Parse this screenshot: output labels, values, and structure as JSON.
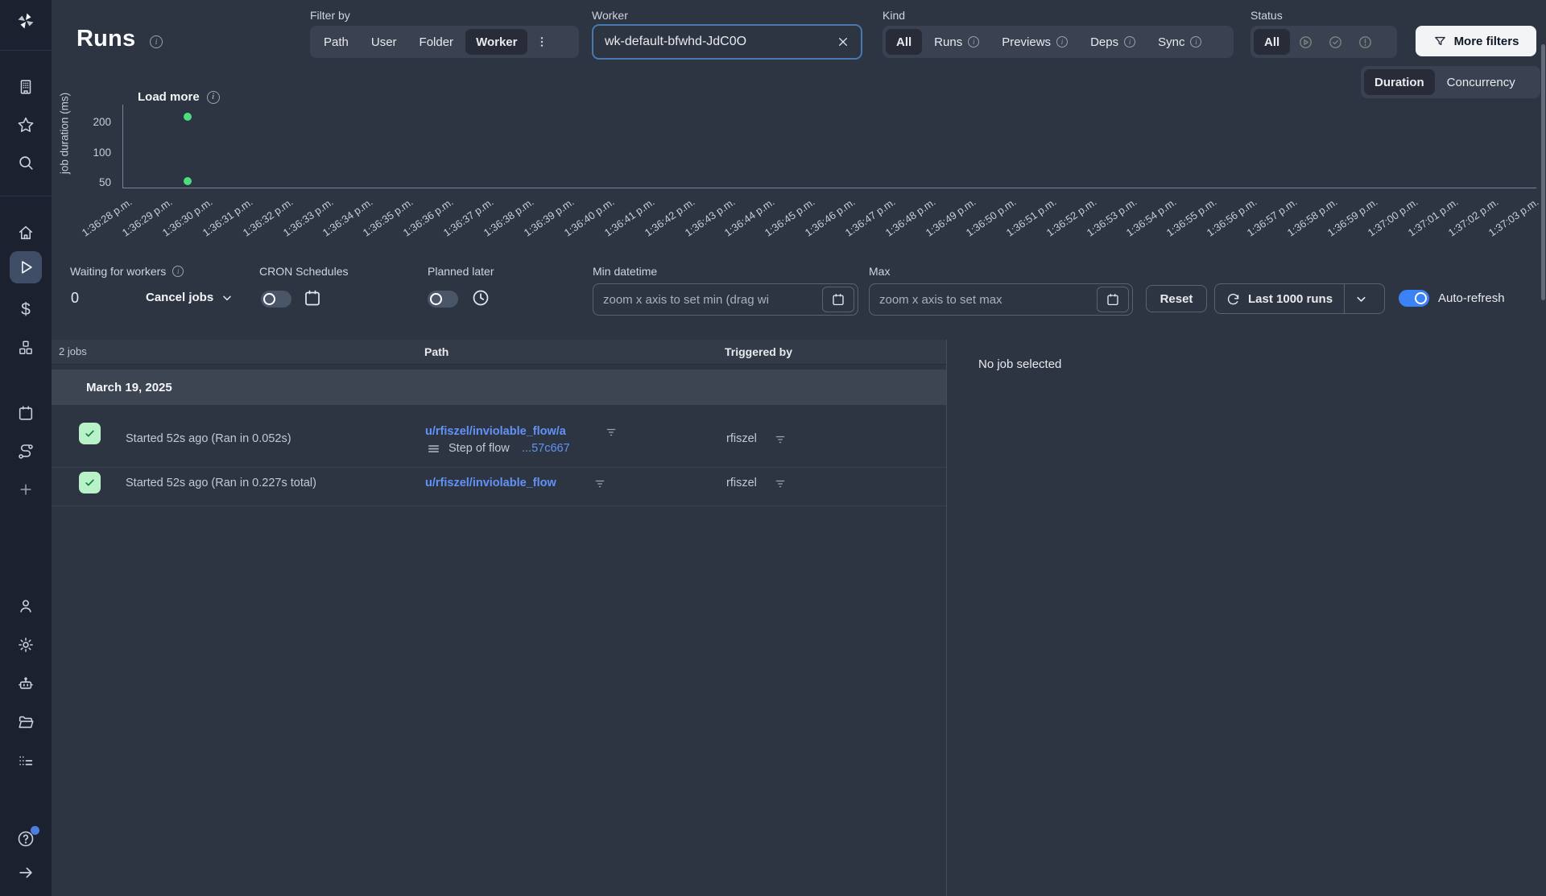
{
  "sidebar": {
    "selected": "runs",
    "icons_top": [
      "windmill-logo",
      "building",
      "star",
      "search"
    ],
    "icons_middle": [
      "home",
      "runs-play",
      "dollar",
      "resources-cubes",
      "calendar-schedules",
      "flows-route",
      "plus"
    ],
    "icons_bottom": [
      "user",
      "settings-gear",
      "robot-workers",
      "folder",
      "audit-list"
    ],
    "icons_footer": [
      "help-circle",
      "collapse-arrow-right"
    ]
  },
  "header": {
    "title": "Runs",
    "filter_by": {
      "label": "Filter by",
      "options": [
        "Path",
        "User",
        "Folder",
        "Worker"
      ],
      "selected": "Worker"
    },
    "worker_filter": {
      "label": "Worker",
      "value": "wk-default-bfwhd-JdC0O"
    },
    "kind": {
      "label": "Kind",
      "selected": "All",
      "options": [
        {
          "label": "All",
          "info": false
        },
        {
          "label": "Runs",
          "info": true
        },
        {
          "label": "Previews",
          "info": true
        },
        {
          "label": "Deps",
          "info": true
        },
        {
          "label": "Sync",
          "info": true
        }
      ]
    },
    "status": {
      "label": "Status",
      "selected": "All",
      "all_label": "All",
      "icon_options": [
        "running-play-circle",
        "success-check-circle",
        "failure-alert-circle"
      ]
    },
    "more_filters_label": "More filters"
  },
  "chart_data": {
    "type": "scatter",
    "title": "",
    "ylabel": "job duration (ms)",
    "yscale": "log",
    "yticks": [
      200,
      100,
      50
    ],
    "x_labels": [
      "1:36:28 p.m.",
      "1:36:29 p.m.",
      "1:36:30 p.m.",
      "1:36:31 p.m.",
      "1:36:32 p.m.",
      "1:36:33 p.m.",
      "1:36:34 p.m.",
      "1:36:35 p.m.",
      "1:36:36 p.m.",
      "1:36:37 p.m.",
      "1:36:38 p.m.",
      "1:36:39 p.m.",
      "1:36:40 p.m.",
      "1:36:41 p.m.",
      "1:36:42 p.m.",
      "1:36:43 p.m.",
      "1:36:44 p.m.",
      "1:36:45 p.m.",
      "1:36:46 p.m.",
      "1:36:47 p.m.",
      "1:36:48 p.m.",
      "1:36:49 p.m.",
      "1:36:50 p.m.",
      "1:36:51 p.m.",
      "1:36:52 p.m.",
      "1:36:53 p.m.",
      "1:36:54 p.m.",
      "1:36:55 p.m.",
      "1:36:56 p.m.",
      "1:36:57 p.m.",
      "1:36:58 p.m.",
      "1:36:59 p.m.",
      "1:37:00 p.m.",
      "1:37:01 p.m.",
      "1:37:02 p.m.",
      "1:37:03 p.m."
    ],
    "points": [
      {
        "x_label": "1:36:30 p.m.",
        "duration_ms": 227
      },
      {
        "x_label": "1:36:30 p.m.",
        "duration_ms": 52
      }
    ],
    "point_color": "#4ade80",
    "load_more_label": "Load more",
    "view_options": [
      "Duration",
      "Concurrency"
    ],
    "view_selected": "Duration",
    "legend": "none",
    "grid": false
  },
  "toolbar": {
    "waiting_for_workers": {
      "label": "Waiting for workers",
      "count": "0"
    },
    "cancel_jobs_label": "Cancel jobs",
    "cron_schedules": {
      "label": "CRON Schedules",
      "enabled": false
    },
    "planned_later": {
      "label": "Planned later",
      "enabled": false
    },
    "min_datetime": {
      "label": "Min datetime",
      "placeholder": "zoom x axis to set min (drag wi"
    },
    "max_datetime": {
      "label": "Max",
      "placeholder": "zoom x axis to set max"
    },
    "reset_label": "Reset",
    "runs_window_label": "Last 1000 runs",
    "auto_refresh": {
      "label": "Auto-refresh",
      "enabled": true
    }
  },
  "jobs_panel": {
    "count_label": "2 jobs",
    "columns": {
      "path": "Path",
      "triggered_by": "Triggered by"
    },
    "date_header": "March 19, 2025",
    "rows": [
      {
        "status": "success",
        "started": "Started 52s ago (Ran in 0.052s)",
        "path": "u/rfiszel/inviolable_flow/a",
        "step_prefix": "Step of flow ",
        "step_link": "...57c667",
        "triggered_by": "rfiszel"
      },
      {
        "status": "success",
        "started": "Started 52s ago (Ran in 0.227s total)",
        "path": "u/rfiszel/inviolable_flow",
        "triggered_by": "rfiszel"
      }
    ]
  },
  "detail_panel": {
    "empty_message": "No job selected"
  },
  "colors": {
    "sidebar_bg": "#1c2130",
    "main_bg": "#2e3542",
    "panel_bg": "#3a4150",
    "segment_selected_bg": "#272c38",
    "header_row_bg": "#333a48",
    "date_row_bg": "#3d4452",
    "accent_blue": "#3b82f6",
    "input_focus_border": "#4878b0",
    "link_blue": "#6292f7",
    "success_dot": "#4ade80",
    "success_badge_bg": "#b9f2c9",
    "success_badge_check": "#15803d",
    "more_filters_bg": "#f3f4f6"
  }
}
